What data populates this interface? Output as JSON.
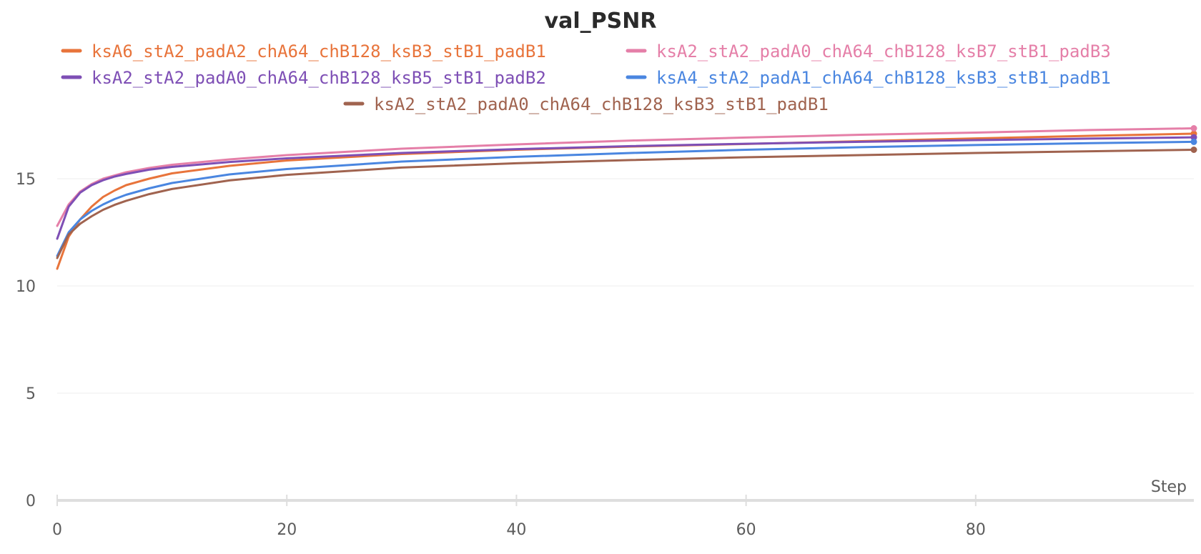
{
  "chart_data": {
    "type": "line",
    "title": "val_PSNR",
    "xlabel": "Step",
    "ylabel": "",
    "xlim": [
      0,
      99
    ],
    "ylim": [
      0,
      18
    ],
    "x_ticks": [
      0,
      20,
      40,
      60,
      80
    ],
    "y_ticks": [
      0,
      5,
      10,
      15
    ],
    "grid": true,
    "legend_position": "top",
    "series": [
      {
        "name": "ksA6_stA2_padA2_chA64_chB128_ksB3_stB1_padB1",
        "color": "#e8743b",
        "x": [
          0,
          1,
          2,
          3,
          4,
          5,
          6,
          8,
          10,
          15,
          20,
          30,
          40,
          50,
          60,
          70,
          80,
          90,
          99
        ],
        "values": [
          10.8,
          12.3,
          13.1,
          13.7,
          14.15,
          14.45,
          14.7,
          15.0,
          15.25,
          15.6,
          15.85,
          16.15,
          16.35,
          16.5,
          16.62,
          16.75,
          16.88,
          17.0,
          17.1
        ]
      },
      {
        "name": "ksA2_stA2_padA0_chA64_chB128_ksB7_stB1_padB3",
        "color": "#e57fa8",
        "x": [
          0,
          1,
          2,
          3,
          4,
          5,
          6,
          8,
          10,
          15,
          20,
          30,
          40,
          50,
          60,
          70,
          80,
          90,
          99
        ],
        "values": [
          12.8,
          13.8,
          14.4,
          14.75,
          15.0,
          15.15,
          15.3,
          15.5,
          15.65,
          15.9,
          16.1,
          16.4,
          16.6,
          16.78,
          16.92,
          17.05,
          17.15,
          17.27,
          17.35
        ]
      },
      {
        "name": "ksA2_stA2_padA0_chA64_chB128_ksB5_stB1_padB2",
        "color": "#7e4fb5",
        "x": [
          0,
          1,
          2,
          3,
          4,
          5,
          6,
          8,
          10,
          15,
          20,
          30,
          40,
          50,
          60,
          70,
          80,
          90,
          99
        ],
        "values": [
          12.2,
          13.7,
          14.35,
          14.7,
          14.93,
          15.1,
          15.22,
          15.42,
          15.55,
          15.78,
          15.95,
          16.2,
          16.38,
          16.52,
          16.63,
          16.72,
          16.8,
          16.87,
          16.93
        ]
      },
      {
        "name": "ksA4_stA2_padA1_chA64_chB128_ksB3_stB1_padB1",
        "color": "#4a86e0",
        "x": [
          0,
          1,
          2,
          3,
          4,
          5,
          6,
          8,
          10,
          15,
          20,
          30,
          40,
          50,
          60,
          70,
          80,
          90,
          99
        ],
        "values": [
          11.4,
          12.5,
          13.1,
          13.5,
          13.8,
          14.05,
          14.25,
          14.55,
          14.8,
          15.2,
          15.45,
          15.8,
          16.02,
          16.2,
          16.35,
          16.47,
          16.57,
          16.66,
          16.72
        ]
      },
      {
        "name": "ksA2_stA2_padA0_chA64_chB128_ksB3_stB1_padB1",
        "color": "#a0634f",
        "x": [
          0,
          1,
          2,
          3,
          4,
          5,
          6,
          8,
          10,
          15,
          20,
          30,
          40,
          50,
          60,
          70,
          80,
          90,
          99
        ],
        "values": [
          11.3,
          12.4,
          12.9,
          13.25,
          13.55,
          13.78,
          13.97,
          14.28,
          14.52,
          14.92,
          15.18,
          15.52,
          15.72,
          15.87,
          16.0,
          16.1,
          16.2,
          16.28,
          16.35
        ]
      }
    ]
  }
}
